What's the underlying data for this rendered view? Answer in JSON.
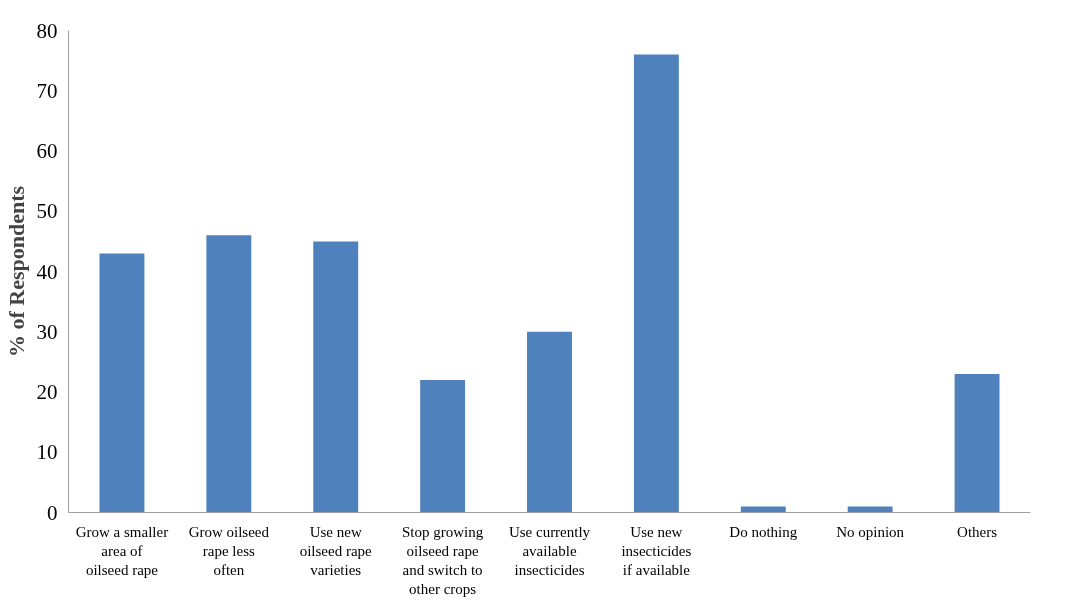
{
  "chart_data": {
    "type": "bar",
    "ylabel": "% of Respondents",
    "categories": [
      "Grow a smaller area of oilseed rape",
      "Grow oilseed rape less often",
      "Use new oilseed rape varieties",
      "Stop growing oilseed rape and switch to other crops",
      "Use currently available insecticides",
      "Use new insecticides if available",
      "Do nothing",
      "No opinion",
      "Others"
    ],
    "values": [
      43,
      46,
      45,
      22,
      30,
      76,
      1,
      1,
      23
    ],
    "color": "#4f81bd",
    "ylim": [
      0,
      80
    ],
    "yticks": [
      0,
      10,
      20,
      30,
      40,
      50,
      60,
      70,
      80
    ],
    "grid": false
  }
}
